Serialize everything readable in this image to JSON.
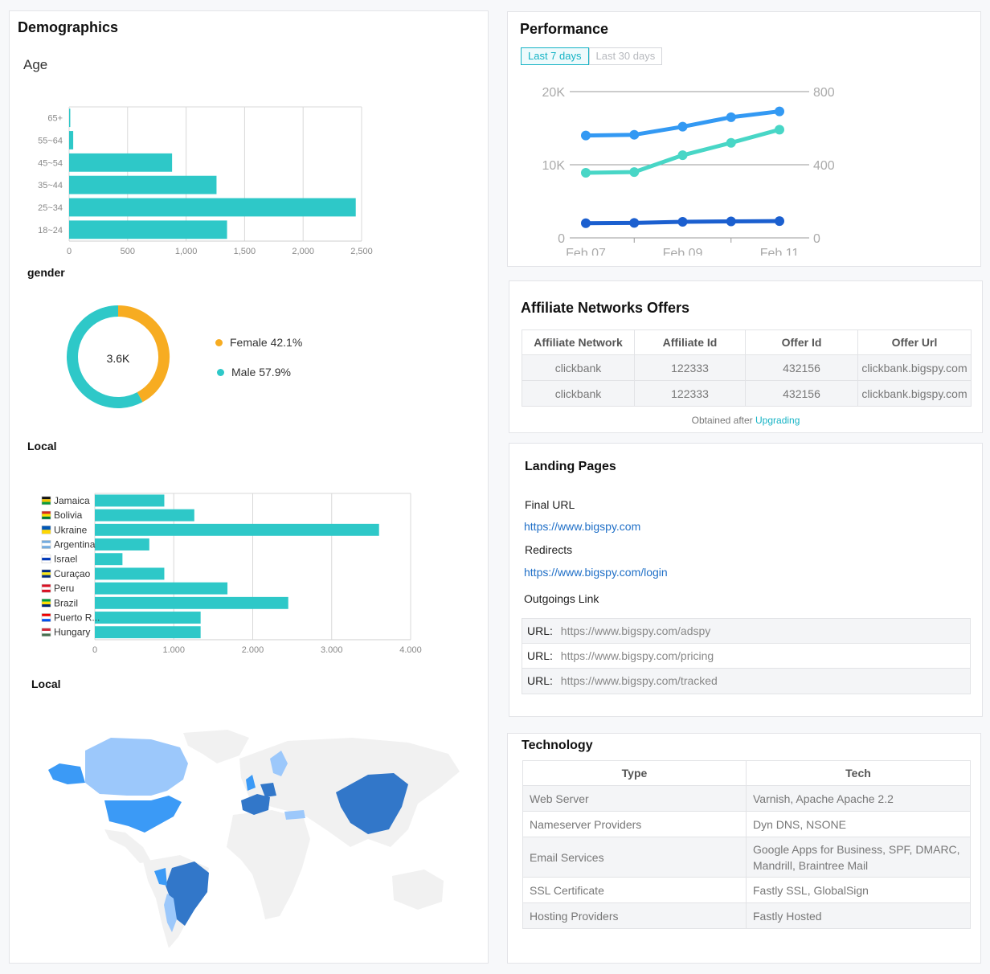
{
  "demographics": {
    "title": "Demographics",
    "age": {
      "title": "Age",
      "x_ticks": [
        "0",
        "500",
        "1,000",
        "1,500",
        "2,000",
        "2,500"
      ],
      "chart_data": {
        "type": "bar",
        "orientation": "horizontal",
        "title": "Age",
        "categories": [
          "65+",
          "55~64",
          "45~54",
          "35~44",
          "25~34",
          "18~24"
        ],
        "values": [
          10,
          35,
          880,
          1260,
          2450,
          1350
        ],
        "xlim": [
          0,
          2500
        ],
        "color": "#2ec8c8",
        "grid": true
      }
    },
    "gender": {
      "title": "gender",
      "center_label": "3.6K",
      "legend": [
        {
          "label": "Female 42.1%",
          "color": "#f7ac21"
        },
        {
          "label": "Male 57.9%",
          "color": "#2ec8c8"
        }
      ],
      "chart_data": {
        "type": "pie",
        "donut": true,
        "categories": [
          "Female",
          "Male"
        ],
        "values": [
          42.1,
          57.9
        ],
        "colors": [
          "#f7ac21",
          "#2ec8c8"
        ]
      }
    },
    "local_bar": {
      "title": "Local",
      "x_ticks": [
        "0",
        "1,000",
        "2,000",
        "3,000",
        "4,000"
      ],
      "chart_data": {
        "type": "bar",
        "orientation": "horizontal",
        "categories": [
          "Jamaica",
          "Bolivia",
          "Ukraine",
          "Argentina",
          "Israel",
          "Curaçao",
          "Peru",
          "Brazil",
          "Puerto R...",
          "Hungary"
        ],
        "values": [
          880,
          1260,
          3600,
          690,
          350,
          880,
          1680,
          2450,
          1340,
          1340
        ],
        "xlim": [
          0,
          4000
        ],
        "color": "#2ec8c8",
        "grid": true
      },
      "flags": [
        {
          "name": "jamaica-flag-icon",
          "c": [
            "#111111",
            "#f4c300",
            "#0a9b3a"
          ]
        },
        {
          "name": "bolivia-flag-icon",
          "c": [
            "#d52b1e",
            "#f9e300",
            "#007934"
          ]
        },
        {
          "name": "ukraine-flag-icon",
          "c": [
            "#0057b7",
            "#ffd700"
          ]
        },
        {
          "name": "argentina-flag-icon",
          "c": [
            "#74acdf",
            "#ffffff",
            "#74acdf"
          ]
        },
        {
          "name": "israel-flag-icon",
          "c": [
            "#ffffff",
            "#0038b8",
            "#ffffff"
          ]
        },
        {
          "name": "curacao-flag-icon",
          "c": [
            "#002b7f",
            "#f9e814",
            "#002b7f"
          ]
        },
        {
          "name": "peru-flag-icon",
          "c": [
            "#d91023",
            "#ffffff",
            "#d91023"
          ]
        },
        {
          "name": "brazil-flag-icon",
          "c": [
            "#009c3b",
            "#ffdf00",
            "#002776"
          ]
        },
        {
          "name": "puerto-rico-flag-icon",
          "c": [
            "#ed0000",
            "#ffffff",
            "#0050f0"
          ]
        },
        {
          "name": "hungary-flag-icon",
          "c": [
            "#ce2939",
            "#ffffff",
            "#477050"
          ]
        }
      ]
    },
    "local_map": {
      "title": "Local",
      "colors": {
        "high": "#3277c9",
        "mid": "#3b9af6",
        "low": "#9cc8fb",
        "none": "#f1f1f1"
      }
    }
  },
  "performance": {
    "title": "Performance",
    "tabs": [
      {
        "label": "Last 7 days",
        "active": true
      },
      {
        "label": "Last 30 days",
        "active": false
      }
    ],
    "left_ticks": [
      "20K",
      "10K",
      "0"
    ],
    "right_ticks": [
      "800",
      "400",
      "0"
    ],
    "x_ticks": [
      "Feb 07",
      "Feb 09",
      "Feb 11"
    ],
    "chart_data": {
      "type": "line",
      "x": [
        "Feb 07",
        "Feb 08",
        "Feb 09",
        "Feb 10",
        "Feb 11"
      ],
      "ylim_left": [
        0,
        20000
      ],
      "ylim_right": [
        0,
        800
      ],
      "series": [
        {
          "axis": "left",
          "color": "#3399f3",
          "values": [
            14000,
            14100,
            15200,
            16500,
            17300
          ]
        },
        {
          "axis": "left",
          "color": "#48d6c6",
          "values": [
            8900,
            9000,
            11300,
            13000,
            14800
          ]
        },
        {
          "axis": "left",
          "color": "#1b5fcf",
          "values": [
            2000,
            2050,
            2200,
            2250,
            2300
          ]
        }
      ]
    }
  },
  "affiliate": {
    "title": "Affiliate Networks Offers",
    "columns": [
      "Affiliate Network",
      "Affiliate Id",
      "Offer Id",
      "Offer Url"
    ],
    "rows": [
      [
        "clickbank",
        "122333",
        "432156",
        "clickbank.bigspy.com"
      ],
      [
        "clickbank",
        "122333",
        "432156",
        "clickbank.bigspy.com"
      ]
    ],
    "note_text": "Obtained after",
    "note_link": "Upgrading"
  },
  "landing": {
    "title": "Landing Pages",
    "final_url_label": "Final URL",
    "final_url": "https://www.bigspy.com",
    "redirects_label": "Redirects",
    "redirect_url": "https://www.bigspy.com/login",
    "outgoing_label": "Outgoings Link",
    "url_key": "URL:",
    "outgoing_urls": [
      "https://www.bigspy.com/adspy",
      "https://www.bigspy.com/pricing",
      "https://www.bigspy.com/tracked"
    ]
  },
  "technology": {
    "title": "Technology",
    "columns": [
      "Type",
      "Tech"
    ],
    "rows": [
      [
        "Web Server",
        "Varnish, Apache Apache 2.2"
      ],
      [
        "Nameserver Providers",
        "Dyn DNS, NSONE"
      ],
      [
        "Email Services",
        "Google Apps for Business, SPF, DMARC, Mandrill, Braintree Mail"
      ],
      [
        "SSL Certificate",
        "Fastly SSL, GlobalSign"
      ],
      [
        "Hosting Providers",
        "Fastly Hosted"
      ]
    ]
  }
}
